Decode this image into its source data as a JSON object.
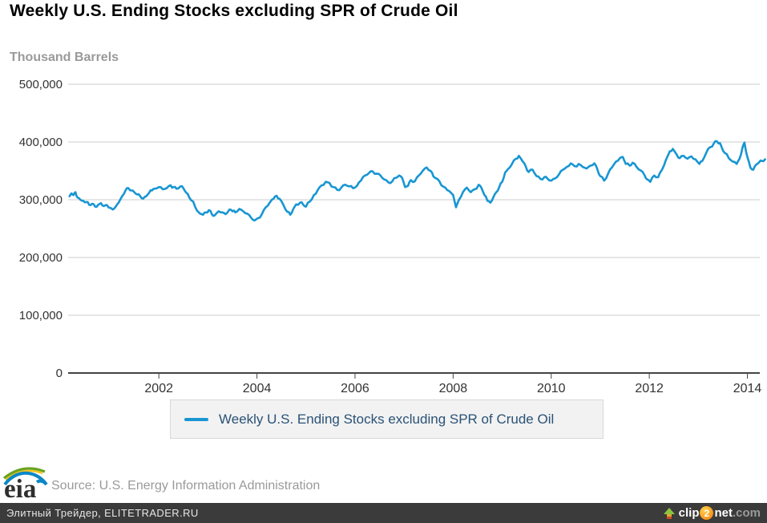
{
  "title": "Weekly U.S. Ending Stocks excluding SPR of Crude Oil",
  "y_axis_title": "Thousand Barrels",
  "legend": {
    "label": "Weekly U.S. Ending Stocks excluding SPR of Crude Oil"
  },
  "source": "Source: U.S. Energy Information Administration",
  "logo": {
    "eia_text": "eia"
  },
  "footer_bar": {
    "left_text": "Элитный Трейдер, ELITETRADER.RU",
    "clip2net": {
      "clip": "clip",
      "two": "2",
      "net": "net",
      "com": ".com"
    }
  },
  "colors": {
    "line": "#1896d2",
    "grid": "#cdcdcd",
    "axis": "#444444",
    "tick_text": "#333333",
    "muted_text": "#9a9a9a",
    "legend_text": "#2a5277",
    "legend_bg": "#f2f2f2",
    "bottom_bar_bg": "#3b3b3b"
  },
  "chart_data": {
    "type": "line",
    "title": "Weekly U.S. Ending Stocks excluding SPR of Crude Oil",
    "ylabel": "Thousand Barrels",
    "units": "thousand barrels",
    "grid": true,
    "legend_position": "bottom",
    "ylim": [
      0,
      500000
    ],
    "xlim": [
      2000.15,
      2014.4
    ],
    "y_ticks": [
      0,
      100000,
      200000,
      300000,
      400000,
      500000
    ],
    "x_ticks": [
      2002,
      2004,
      2006,
      2008,
      2010,
      2012,
      2014
    ],
    "series": [
      {
        "name": "Weekly U.S. Ending Stocks excluding SPR of Crude Oil",
        "color": "#1896d2",
        "points": [
          [
            2000.18,
            306000
          ],
          [
            2000.22,
            311000
          ],
          [
            2000.26,
            308000
          ],
          [
            2000.3,
            313000
          ],
          [
            2000.34,
            304000
          ],
          [
            2000.4,
            300000
          ],
          [
            2000.46,
            298000
          ],
          [
            2000.52,
            296000
          ],
          [
            2000.58,
            291000
          ],
          [
            2000.64,
            293000
          ],
          [
            2000.7,
            288000
          ],
          [
            2000.76,
            291000
          ],
          [
            2000.82,
            294000
          ],
          [
            2000.88,
            289000
          ],
          [
            2000.94,
            291000
          ],
          [
            2001.0,
            286000
          ],
          [
            2001.06,
            283000
          ],
          [
            2001.12,
            288000
          ],
          [
            2001.18,
            295000
          ],
          [
            2001.25,
            306000
          ],
          [
            2001.32,
            316000
          ],
          [
            2001.38,
            320000
          ],
          [
            2001.44,
            316000
          ],
          [
            2001.5,
            313000
          ],
          [
            2001.56,
            309000
          ],
          [
            2001.62,
            306000
          ],
          [
            2001.68,
            302000
          ],
          [
            2001.74,
            306000
          ],
          [
            2001.8,
            312000
          ],
          [
            2001.86,
            316000
          ],
          [
            2001.92,
            319000
          ],
          [
            2002.0,
            322000
          ],
          [
            2002.08,
            318000
          ],
          [
            2002.16,
            320000
          ],
          [
            2002.24,
            325000
          ],
          [
            2002.3,
            322000
          ],
          [
            2002.36,
            319000
          ],
          [
            2002.44,
            323000
          ],
          [
            2002.5,
            320000
          ],
          [
            2002.56,
            312000
          ],
          [
            2002.62,
            304000
          ],
          [
            2002.7,
            297000
          ],
          [
            2002.78,
            281000
          ],
          [
            2002.84,
            276000
          ],
          [
            2002.9,
            274000
          ],
          [
            2002.96,
            278000
          ],
          [
            2003.02,
            282000
          ],
          [
            2003.08,
            275000
          ],
          [
            2003.14,
            273000
          ],
          [
            2003.22,
            280000
          ],
          [
            2003.3,
            278000
          ],
          [
            2003.36,
            275000
          ],
          [
            2003.44,
            283000
          ],
          [
            2003.5,
            280000
          ],
          [
            2003.56,
            278000
          ],
          [
            2003.64,
            284000
          ],
          [
            2003.72,
            280000
          ],
          [
            2003.8,
            276000
          ],
          [
            2003.88,
            269000
          ],
          [
            2003.95,
            264000
          ],
          [
            2004.02,
            268000
          ],
          [
            2004.1,
            275000
          ],
          [
            2004.18,
            287000
          ],
          [
            2004.26,
            295000
          ],
          [
            2004.34,
            302000
          ],
          [
            2004.4,
            307000
          ],
          [
            2004.46,
            302000
          ],
          [
            2004.54,
            291000
          ],
          [
            2004.62,
            279000
          ],
          [
            2004.68,
            274000
          ],
          [
            2004.74,
            284000
          ],
          [
            2004.8,
            292000
          ],
          [
            2004.88,
            295000
          ],
          [
            2004.94,
            292000
          ],
          [
            2005.0,
            288000
          ],
          [
            2005.08,
            297000
          ],
          [
            2005.16,
            308000
          ],
          [
            2005.24,
            317000
          ],
          [
            2005.32,
            325000
          ],
          [
            2005.4,
            331000
          ],
          [
            2005.48,
            329000
          ],
          [
            2005.56,
            322000
          ],
          [
            2005.64,
            317000
          ],
          [
            2005.72,
            321000
          ],
          [
            2005.8,
            326000
          ],
          [
            2005.88,
            323000
          ],
          [
            2005.96,
            320000
          ],
          [
            2006.04,
            324000
          ],
          [
            2006.12,
            333000
          ],
          [
            2006.2,
            342000
          ],
          [
            2006.28,
            346000
          ],
          [
            2006.36,
            349000
          ],
          [
            2006.44,
            345000
          ],
          [
            2006.52,
            342000
          ],
          [
            2006.6,
            335000
          ],
          [
            2006.68,
            330000
          ],
          [
            2006.76,
            332000
          ],
          [
            2006.84,
            338000
          ],
          [
            2006.9,
            342000
          ],
          [
            2006.96,
            338000
          ],
          [
            2007.02,
            322000
          ],
          [
            2007.08,
            324000
          ],
          [
            2007.14,
            334000
          ],
          [
            2007.22,
            332000
          ],
          [
            2007.3,
            342000
          ],
          [
            2007.38,
            350000
          ],
          [
            2007.46,
            356000
          ],
          [
            2007.54,
            350000
          ],
          [
            2007.6,
            340000
          ],
          [
            2007.68,
            336000
          ],
          [
            2007.76,
            325000
          ],
          [
            2007.84,
            321000
          ],
          [
            2007.92,
            315000
          ],
          [
            2008.0,
            308000
          ],
          [
            2008.06,
            287000
          ],
          [
            2008.12,
            300000
          ],
          [
            2008.2,
            313000
          ],
          [
            2008.28,
            321000
          ],
          [
            2008.36,
            313000
          ],
          [
            2008.44,
            318000
          ],
          [
            2008.52,
            326000
          ],
          [
            2008.58,
            320000
          ],
          [
            2008.64,
            308000
          ],
          [
            2008.7,
            298000
          ],
          [
            2008.76,
            295000
          ],
          [
            2008.82,
            304000
          ],
          [
            2008.88,
            313000
          ],
          [
            2008.94,
            322000
          ],
          [
            2009.0,
            331000
          ],
          [
            2009.06,
            347000
          ],
          [
            2009.12,
            353000
          ],
          [
            2009.2,
            362000
          ],
          [
            2009.28,
            371000
          ],
          [
            2009.34,
            376000
          ],
          [
            2009.42,
            366000
          ],
          [
            2009.48,
            358000
          ],
          [
            2009.54,
            348000
          ],
          [
            2009.62,
            352000
          ],
          [
            2009.7,
            341000
          ],
          [
            2009.78,
            336000
          ],
          [
            2009.86,
            339000
          ],
          [
            2009.92,
            337000
          ],
          [
            2010.0,
            333000
          ],
          [
            2010.08,
            337000
          ],
          [
            2010.16,
            344000
          ],
          [
            2010.24,
            352000
          ],
          [
            2010.32,
            357000
          ],
          [
            2010.4,
            363000
          ],
          [
            2010.48,
            358000
          ],
          [
            2010.56,
            362000
          ],
          [
            2010.64,
            357000
          ],
          [
            2010.72,
            354000
          ],
          [
            2010.8,
            359000
          ],
          [
            2010.88,
            363000
          ],
          [
            2010.94,
            353000
          ],
          [
            2011.0,
            341000
          ],
          [
            2011.08,
            333000
          ],
          [
            2011.16,
            345000
          ],
          [
            2011.24,
            356000
          ],
          [
            2011.32,
            366000
          ],
          [
            2011.4,
            372000
          ],
          [
            2011.46,
            374000
          ],
          [
            2011.52,
            362000
          ],
          [
            2011.6,
            359000
          ],
          [
            2011.66,
            364000
          ],
          [
            2011.74,
            357000
          ],
          [
            2011.82,
            351000
          ],
          [
            2011.9,
            343000
          ],
          [
            2011.96,
            335000
          ],
          [
            2012.02,
            331000
          ],
          [
            2012.1,
            342000
          ],
          [
            2012.18,
            339000
          ],
          [
            2012.26,
            352000
          ],
          [
            2012.34,
            369000
          ],
          [
            2012.42,
            384000
          ],
          [
            2012.48,
            388000
          ],
          [
            2012.56,
            378000
          ],
          [
            2012.62,
            372000
          ],
          [
            2012.7,
            376000
          ],
          [
            2012.78,
            371000
          ],
          [
            2012.86,
            375000
          ],
          [
            2012.94,
            370000
          ],
          [
            2013.02,
            362000
          ],
          [
            2013.08,
            367000
          ],
          [
            2013.16,
            381000
          ],
          [
            2013.24,
            391000
          ],
          [
            2013.32,
            398000
          ],
          [
            2013.38,
            401000
          ],
          [
            2013.44,
            398000
          ],
          [
            2013.48,
            390000
          ],
          [
            2013.54,
            381000
          ],
          [
            2013.62,
            372000
          ],
          [
            2013.7,
            366000
          ],
          [
            2013.78,
            362000
          ],
          [
            2013.84,
            371000
          ],
          [
            2013.9,
            390000
          ],
          [
            2013.94,
            399000
          ],
          [
            2014.0,
            374000
          ],
          [
            2014.06,
            356000
          ],
          [
            2014.12,
            352000
          ],
          [
            2014.18,
            361000
          ],
          [
            2014.24,
            365000
          ],
          [
            2014.3,
            367000
          ],
          [
            2014.36,
            370000
          ]
        ]
      }
    ]
  }
}
